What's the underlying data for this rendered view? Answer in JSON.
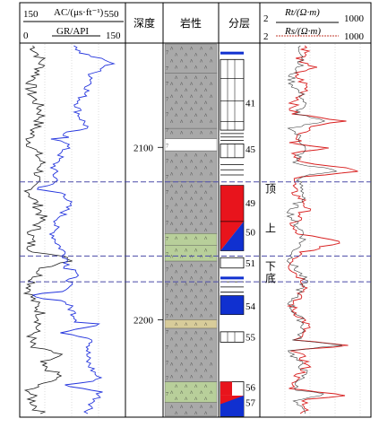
{
  "header": {
    "ac_min": "150",
    "ac_max": "550",
    "ac_label": "AC/(μs·ft⁻¹)",
    "gr_min": "0",
    "gr_max": "150",
    "gr_label": "GR/API",
    "depth_title": "深度",
    "lith_title": "岩性",
    "layer_title": "分层",
    "rt_min": "2",
    "rt_max": "1000",
    "rt_label": "Rt/(Ω·m)",
    "rs_min": "2",
    "rs_max": "1000",
    "rs_label": "Rs/(Ω·m)"
  },
  "depth_ticks": [
    {
      "label": "2100",
      "depth": 2100
    },
    {
      "label": "2200",
      "depth": 2200
    }
  ],
  "depth_range": {
    "top": 2040,
    "bottom": 2256
  },
  "layer_numbers": [
    {
      "label": "41",
      "depth": 2074
    },
    {
      "label": "45",
      "depth": 2101
    },
    {
      "label": "49",
      "depth": 2132
    },
    {
      "label": "50",
      "depth": 2149
    },
    {
      "label": "51",
      "depth": 2167
    },
    {
      "label": "54",
      "depth": 2192
    },
    {
      "label": "55",
      "depth": 2210
    },
    {
      "label": "56",
      "depth": 2239
    },
    {
      "label": "57",
      "depth": 2248
    }
  ],
  "markers": [
    {
      "label": "顶",
      "depth": 2124
    },
    {
      "label": "上",
      "depth": 2147
    },
    {
      "label": "下",
      "depth": 2169
    },
    {
      "label": "底",
      "depth": 2176
    }
  ],
  "boundaries": [
    2120,
    2163,
    2178
  ],
  "colors": {
    "ac_curve": "#1a1a1a",
    "gr_curve": "#2233dd",
    "rt_curve": "#d81e1e",
    "rs_curve": "#333333",
    "boundary": "#4a4aa8",
    "lith_gray": "#a9a9a9",
    "lith_green": "#b8cf9a",
    "lith_tan": "#d8cc9a",
    "oil_red": "#e8141c",
    "water_blue": "#1030d0"
  }
}
